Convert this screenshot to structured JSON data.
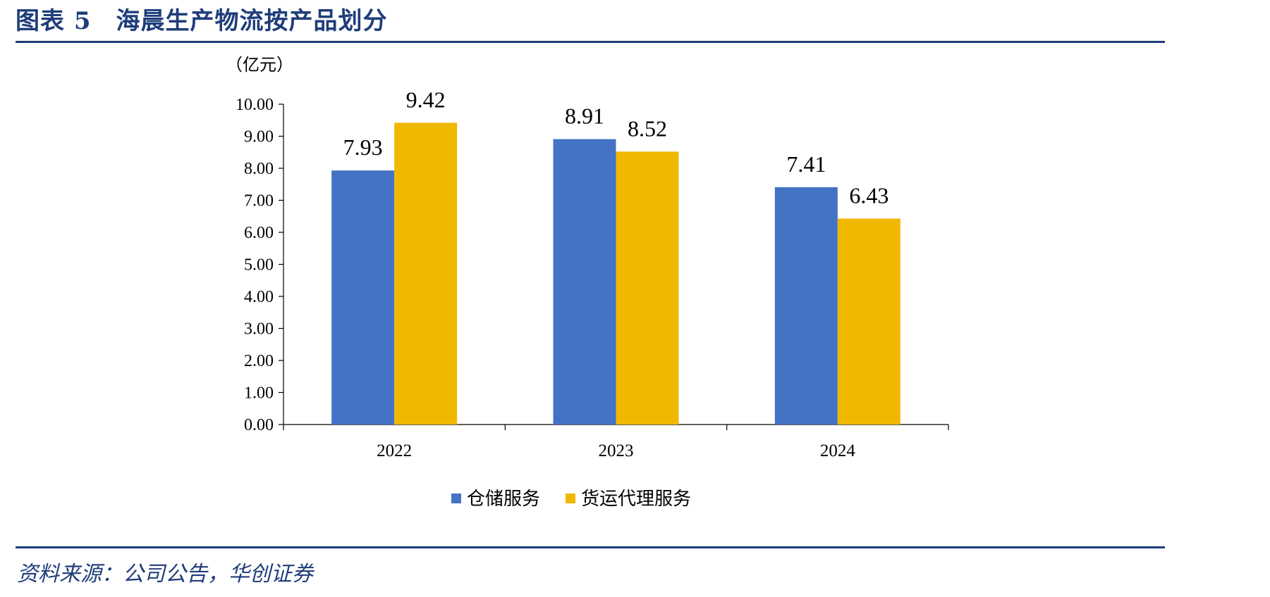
{
  "figure": {
    "title": "图表 5　海晨生产物流按产品划分",
    "source": "资料来源：公司公告，华创证券"
  },
  "chart_data": {
    "type": "bar",
    "title": "",
    "xlabel": "",
    "ylabel": "（亿元）",
    "categories": [
      "2022",
      "2023",
      "2024"
    ],
    "series": [
      {
        "name": "仓储服务",
        "values": [
          7.93,
          8.91,
          7.41
        ],
        "color": "#4472C4"
      },
      {
        "name": "货运代理服务",
        "values": [
          9.42,
          8.52,
          6.43
        ],
        "color": "#F0B800"
      }
    ],
    "ylim": [
      0,
      10
    ],
    "yticks": [
      "0.00",
      "1.00",
      "2.00",
      "3.00",
      "4.00",
      "5.00",
      "6.00",
      "7.00",
      "8.00",
      "9.00",
      "10.00"
    ],
    "data_labels": [
      [
        "7.93",
        "8.91",
        "7.41"
      ],
      [
        "9.42",
        "8.52",
        "6.43"
      ]
    ],
    "grid": false,
    "legend_position": "bottom"
  }
}
